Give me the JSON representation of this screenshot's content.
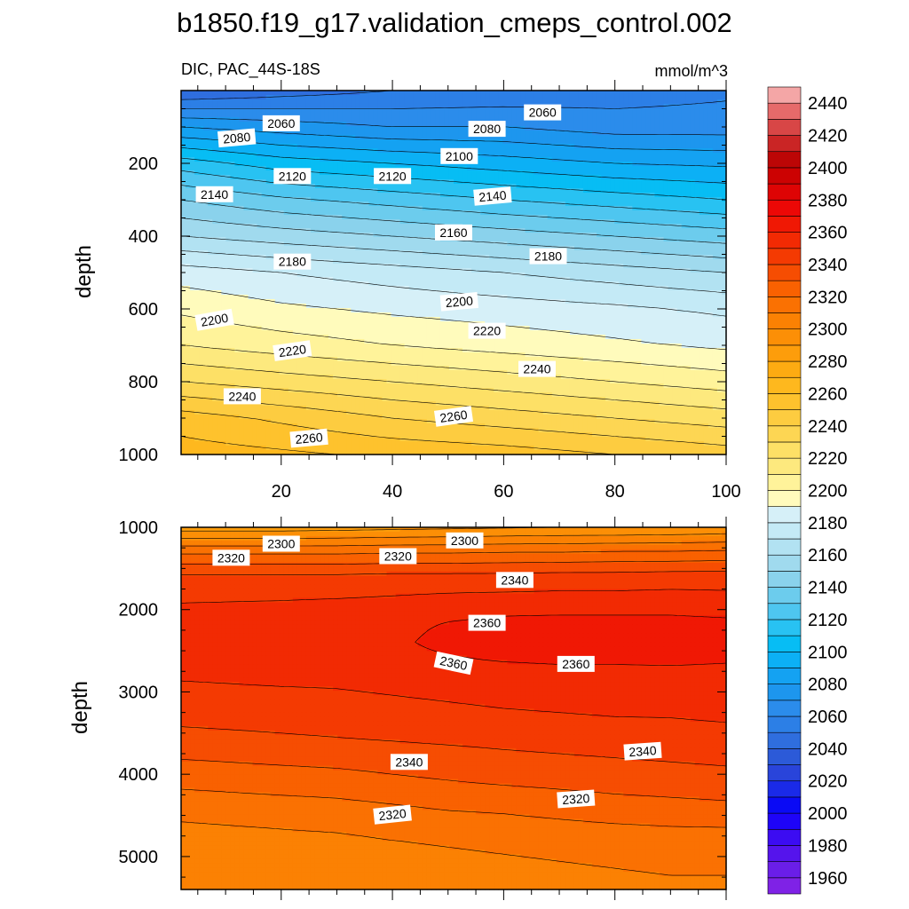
{
  "figure": {
    "title": "b1850.f19_g17.validation_cmeps_control.002"
  },
  "panels": [
    {
      "left_label": "DIC, PAC_44S-18S",
      "right_label": "mmol/m^3",
      "ylabel": "depth"
    },
    {
      "left_label": "",
      "right_label": "",
      "ylabel": "depth"
    }
  ],
  "colorbar": {
    "levels": [
      1950,
      1960,
      1970,
      1980,
      1990,
      2000,
      2010,
      2020,
      2030,
      2040,
      2050,
      2060,
      2070,
      2080,
      2090,
      2100,
      2110,
      2120,
      2130,
      2140,
      2150,
      2160,
      2170,
      2180,
      2190,
      2200,
      2210,
      2220,
      2230,
      2240,
      2250,
      2260,
      2270,
      2280,
      2290,
      2300,
      2310,
      2320,
      2330,
      2340,
      2350,
      2360,
      2370,
      2380,
      2390,
      2400,
      2410,
      2420,
      2430,
      2440,
      2450
    ],
    "colors": [
      "#7f22e6",
      "#6a1ee8",
      "#5514ec",
      "#3c0cf2",
      "#1e04f8",
      "#0a0af5",
      "#1a2ae8",
      "#2944da",
      "#2c5ad8",
      "#2f6ede",
      "#2c7fe6",
      "#2b8ceb",
      "#1d96ee",
      "#14a2f2",
      "#0cb0f5",
      "#07bdf4",
      "#28c2f2",
      "#4ec6f0",
      "#6ccced",
      "#8ad2ec",
      "#a0daee",
      "#b2e2f2",
      "#c4eaf6",
      "#d6f0f8",
      "#fffbbc",
      "#fff39a",
      "#fde97e",
      "#fde066",
      "#fdd653",
      "#fdcc40",
      "#fec22d",
      "#feb81e",
      "#fdab12",
      "#fd9d0b",
      "#fc8f06",
      "#fb8103",
      "#fa7102",
      "#f96101",
      "#f64d02",
      "#f43a02",
      "#f22a03",
      "#f01804",
      "#ec0806",
      "#de0404",
      "#cc0202",
      "#bc0606",
      "#ca2525",
      "#d84646",
      "#e66a6a",
      "#f4a6a6"
    ],
    "tick_values": [
      1960,
      1980,
      2000,
      2020,
      2040,
      2060,
      2080,
      2100,
      2120,
      2140,
      2160,
      2180,
      2200,
      2220,
      2240,
      2260,
      2280,
      2300,
      2320,
      2340,
      2360,
      2380,
      2400,
      2420,
      2440
    ]
  },
  "chart_data": [
    {
      "type": "heatmap",
      "title": "DIC, PAC_44S-18S",
      "units": "mmol/m^3",
      "ylabel": "depth",
      "xlim": [
        2,
        100
      ],
      "ylim": [
        1000,
        0
      ],
      "y_reversed": true,
      "xticks": [
        20,
        40,
        60,
        80,
        100
      ],
      "yticks": [
        200,
        400,
        600,
        800,
        1000
      ],
      "contour_interval": 10,
      "x_grid": [
        2,
        20,
        40,
        60,
        80,
        100
      ],
      "y_grid": [
        0,
        100,
        200,
        300,
        400,
        500,
        600,
        700,
        800,
        900,
        1000
      ],
      "values": [
        [
          2040,
          2045,
          2050,
          2052,
          2055,
          2058
        ],
        [
          2080,
          2075,
          2070,
          2070,
          2065,
          2065
        ],
        [
          2115,
          2105,
          2100,
          2095,
          2090,
          2088
        ],
        [
          2140,
          2132,
          2126,
          2120,
          2115,
          2110
        ],
        [
          2160,
          2155,
          2150,
          2145,
          2140,
          2135
        ],
        [
          2185,
          2180,
          2175,
          2170,
          2165,
          2160
        ],
        [
          2198,
          2192,
          2188,
          2185,
          2182,
          2178
        ],
        [
          2210,
          2205,
          2200,
          2196,
          2192,
          2188
        ],
        [
          2230,
          2225,
          2220,
          2215,
          2210,
          2205
        ],
        [
          2255,
          2248,
          2240,
          2235,
          2230,
          2225
        ],
        [
          2265,
          2262,
          2258,
          2255,
          2250,
          2245
        ]
      ],
      "contour_labels": [
        {
          "text": "2060",
          "x": 20,
          "y": 90,
          "angle": 0
        },
        {
          "text": "2060",
          "x": 67,
          "y": 60,
          "angle": 0
        },
        {
          "text": "2080",
          "x": 12,
          "y": 130,
          "angle": -5
        },
        {
          "text": "2080",
          "x": 57,
          "y": 105,
          "angle": 0
        },
        {
          "text": "2100",
          "x": 52,
          "y": 180,
          "angle": 0
        },
        {
          "text": "2120",
          "x": 22,
          "y": 235,
          "angle": 0
        },
        {
          "text": "2120",
          "x": 40,
          "y": 235,
          "angle": 0
        },
        {
          "text": "2140",
          "x": 8,
          "y": 285,
          "angle": 0
        },
        {
          "text": "2140",
          "x": 58,
          "y": 290,
          "angle": -5
        },
        {
          "text": "2160",
          "x": 51,
          "y": 390,
          "angle": 0
        },
        {
          "text": "2180",
          "x": 22,
          "y": 470,
          "angle": 0
        },
        {
          "text": "2180",
          "x": 68,
          "y": 455,
          "angle": 0
        },
        {
          "text": "2200",
          "x": 8,
          "y": 630,
          "angle": -10
        },
        {
          "text": "2200",
          "x": 52,
          "y": 580,
          "angle": -5
        },
        {
          "text": "2220",
          "x": 22,
          "y": 715,
          "angle": -8
        },
        {
          "text": "2220",
          "x": 57,
          "y": 660,
          "angle": 0
        },
        {
          "text": "2240",
          "x": 13,
          "y": 840,
          "angle": 0
        },
        {
          "text": "2240",
          "x": 66,
          "y": 765,
          "angle": 0
        },
        {
          "text": "2260",
          "x": 25,
          "y": 955,
          "angle": -5
        },
        {
          "text": "2260",
          "x": 51,
          "y": 895,
          "angle": -8
        }
      ]
    },
    {
      "type": "heatmap",
      "title": "",
      "ylabel": "depth",
      "xlim": [
        2,
        100
      ],
      "ylim": [
        5400,
        1000
      ],
      "y_reversed": true,
      "xticks": [
        20,
        40,
        60,
        80,
        100
      ],
      "yticks": [
        1000,
        2000,
        3000,
        4000,
        5000
      ],
      "contour_interval": 10,
      "x_grid": [
        2,
        20,
        30,
        40,
        50,
        60,
        70,
        80,
        90,
        100
      ],
      "y_grid": [
        1000,
        1300,
        1600,
        2000,
        2200,
        2400,
        2600,
        2800,
        3200,
        3600,
        4000,
        4400,
        4800,
        5400
      ],
      "values": [
        [
          2285,
          2285,
          2286,
          2287,
          2288,
          2289,
          2290,
          2290,
          2291,
          2292
        ],
        [
          2318,
          2318,
          2318,
          2319,
          2319,
          2320,
          2320,
          2321,
          2321,
          2322
        ],
        [
          2342,
          2342,
          2342,
          2343,
          2343,
          2343,
          2344,
          2344,
          2345,
          2345
        ],
        [
          2352,
          2353,
          2354,
          2355,
          2357,
          2358,
          2358,
          2358,
          2358,
          2357
        ],
        [
          2353,
          2354,
          2355,
          2357,
          2361,
          2363,
          2364,
          2364,
          2364,
          2363
        ],
        [
          2353,
          2354,
          2355,
          2358,
          2363,
          2365,
          2366,
          2366,
          2366,
          2365
        ],
        [
          2352,
          2353,
          2354,
          2356,
          2359,
          2361,
          2362,
          2362,
          2362,
          2361
        ],
        [
          2351,
          2352,
          2352,
          2353,
          2354,
          2355,
          2356,
          2356,
          2357,
          2357
        ],
        [
          2345,
          2346,
          2347,
          2348,
          2349,
          2350,
          2351,
          2352,
          2352,
          2353
        ],
        [
          2336,
          2338,
          2339,
          2340,
          2341,
          2342,
          2343,
          2344,
          2345,
          2346
        ],
        [
          2325,
          2327,
          2328,
          2330,
          2332,
          2334,
          2335,
          2336,
          2337,
          2338
        ],
        [
          2314,
          2316,
          2317,
          2319,
          2321,
          2322,
          2324,
          2326,
          2327,
          2328
        ],
        [
          2305,
          2307,
          2308,
          2310,
          2311,
          2312,
          2313,
          2314,
          2315,
          2315
        ],
        [
          2300,
          2301,
          2302,
          2303,
          2304,
          2305,
          2306,
          2307,
          2308,
          2308
        ]
      ],
      "contour_labels": [
        {
          "text": "2300",
          "x": 20,
          "y": 1200,
          "angle": 0
        },
        {
          "text": "2300",
          "x": 53,
          "y": 1160,
          "angle": 0
        },
        {
          "text": "2320",
          "x": 11,
          "y": 1370,
          "angle": 0
        },
        {
          "text": "2320",
          "x": 41,
          "y": 1350,
          "angle": 0
        },
        {
          "text": "2340",
          "x": 62,
          "y": 1640,
          "angle": 0
        },
        {
          "text": "2360",
          "x": 57,
          "y": 2160,
          "angle": 0
        },
        {
          "text": "2360",
          "x": 51,
          "y": 2650,
          "angle": 12
        },
        {
          "text": "2360",
          "x": 73,
          "y": 2660,
          "angle": 0
        },
        {
          "text": "2340",
          "x": 43,
          "y": 3850,
          "angle": 0
        },
        {
          "text": "2340",
          "x": 85,
          "y": 3720,
          "angle": -4
        },
        {
          "text": "2320",
          "x": 40,
          "y": 4490,
          "angle": -6
        },
        {
          "text": "2320",
          "x": 73,
          "y": 4300,
          "angle": -4
        }
      ]
    }
  ]
}
